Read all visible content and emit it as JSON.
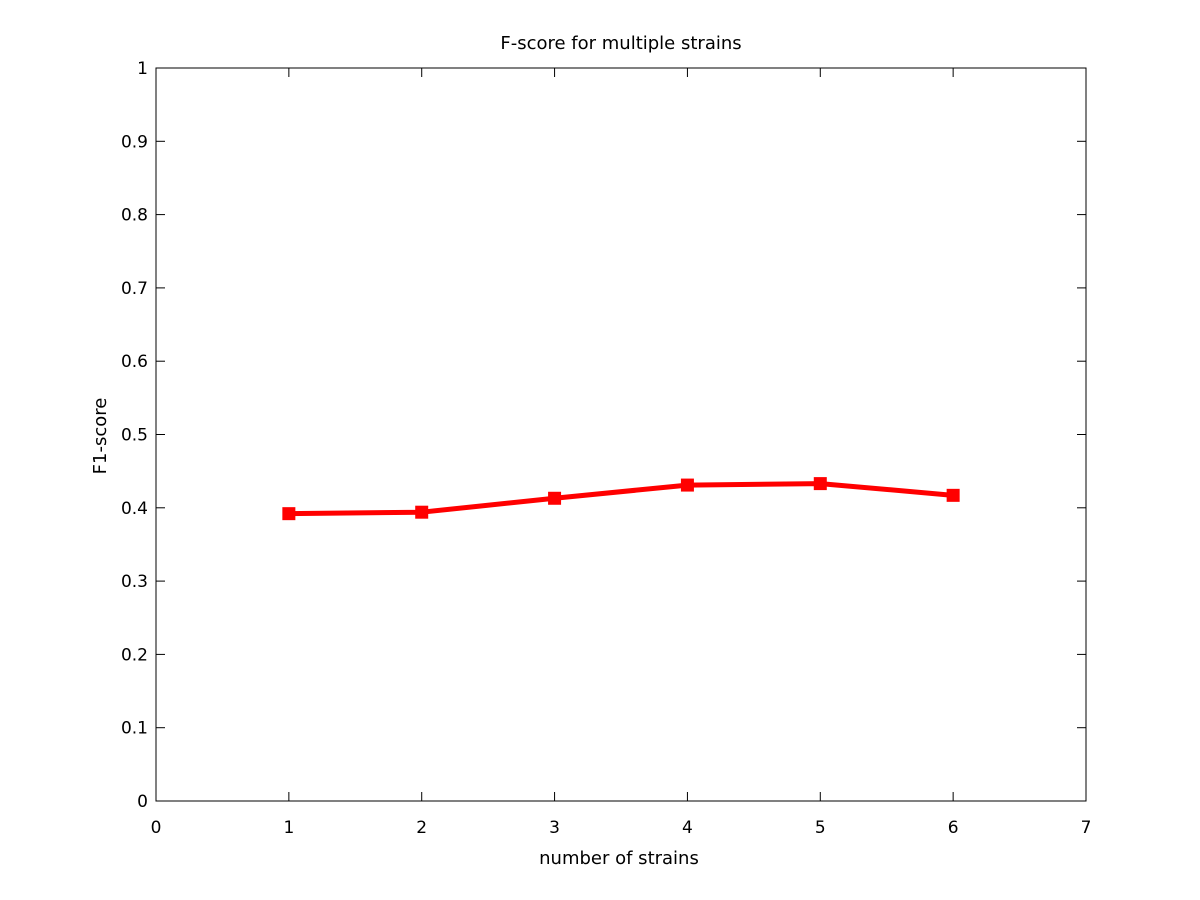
{
  "chart_data": {
    "type": "line",
    "title": "F-score for multiple strains",
    "xlabel": "number of strains",
    "ylabel": "F1-score",
    "xlim": [
      0,
      7
    ],
    "ylim": [
      0,
      1
    ],
    "xticks": [
      "0",
      "1",
      "2",
      "3",
      "4",
      "5",
      "6",
      "7"
    ],
    "yticks": [
      "0",
      "0.1",
      "0.2",
      "0.3",
      "0.4",
      "0.5",
      "0.6",
      "0.7",
      "0.8",
      "0.9",
      "1"
    ],
    "grid": false,
    "series": [
      {
        "color": "#ff0000",
        "marker": "square",
        "x": [
          1,
          2,
          3,
          4,
          5,
          6
        ],
        "y": [
          0.392,
          0.394,
          0.413,
          0.431,
          0.433,
          0.417
        ]
      }
    ]
  }
}
